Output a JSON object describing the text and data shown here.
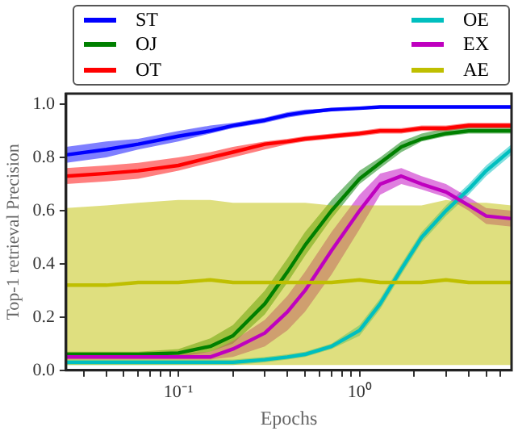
{
  "chart_data": {
    "type": "line",
    "xlabel": "Epochs",
    "ylabel": "Top-1 retrieval Precision",
    "log": "x",
    "legend": "top",
    "marker": "none",
    "line_style": "solid",
    "x": [
      0.024,
      0.04,
      0.06,
      0.1,
      0.15,
      0.2,
      0.3,
      0.4,
      0.5,
      0.7,
      1,
      1.3,
      1.7,
      2.2,
      3,
      4,
      5,
      6.9
    ],
    "xlim": [
      0.024,
      6.9
    ],
    "xticks": [
      {
        "value": 0.03,
        "label": null
      },
      {
        "value": 0.04,
        "label": null
      },
      {
        "value": 0.05,
        "label": null
      },
      {
        "value": 0.06,
        "label": null
      },
      {
        "value": 0.07,
        "label": null
      },
      {
        "value": 0.08,
        "label": null
      },
      {
        "value": 0.09,
        "label": null
      },
      {
        "value": 0.1,
        "label": "10⁻¹"
      },
      {
        "value": 0.2,
        "label": null
      },
      {
        "value": 0.3,
        "label": null
      },
      {
        "value": 0.4,
        "label": null
      },
      {
        "value": 0.5,
        "label": null
      },
      {
        "value": 0.6,
        "label": null
      },
      {
        "value": 0.7,
        "label": null
      },
      {
        "value": 0.8,
        "label": null
      },
      {
        "value": 0.9,
        "label": null
      },
      {
        "value": 1,
        "label": "10⁰"
      },
      {
        "value": 2,
        "label": null
      },
      {
        "value": 3,
        "label": null
      },
      {
        "value": 4,
        "label": null
      },
      {
        "value": 5,
        "label": null
      },
      {
        "value": 6,
        "label": null
      }
    ],
    "ylim": [
      0,
      1.04
    ],
    "yticks": [
      {
        "value": 0,
        "label": "0.0"
      },
      {
        "value": 0.2,
        "label": "0.2"
      },
      {
        "value": 0.4,
        "label": "0.4"
      },
      {
        "value": 0.6,
        "label": "0.6"
      },
      {
        "value": 0.8,
        "label": "0.8"
      },
      {
        "value": 1,
        "label": "1.0"
      }
    ],
    "series": [
      {
        "name": "ST",
        "color": "#0000ff",
        "values": [
          0.81,
          0.83,
          0.85,
          0.88,
          0.9,
          0.92,
          0.94,
          0.96,
          0.97,
          0.98,
          0.985,
          0.99,
          0.99,
          0.99,
          0.99,
          0.99,
          0.99,
          0.99
        ],
        "lower": [
          0.78,
          0.8,
          0.83,
          0.86,
          0.89,
          0.91,
          0.93,
          0.95,
          0.96,
          0.975,
          0.98,
          0.985,
          0.985,
          0.985,
          0.985,
          0.985,
          0.985,
          0.985
        ],
        "upper": [
          0.84,
          0.86,
          0.87,
          0.9,
          0.92,
          0.93,
          0.95,
          0.97,
          0.98,
          0.985,
          0.99,
          0.995,
          0.995,
          0.995,
          0.995,
          0.995,
          0.995,
          0.995
        ]
      },
      {
        "name": "OJ",
        "color": "#008000",
        "values": [
          0.06,
          0.06,
          0.06,
          0.065,
          0.09,
          0.13,
          0.25,
          0.37,
          0.47,
          0.6,
          0.72,
          0.78,
          0.84,
          0.87,
          0.89,
          0.9,
          0.9,
          0.9
        ],
        "lower": [
          0.05,
          0.05,
          0.05,
          0.05,
          0.07,
          0.1,
          0.21,
          0.33,
          0.43,
          0.57,
          0.7,
          0.76,
          0.82,
          0.86,
          0.88,
          0.89,
          0.89,
          0.89
        ],
        "upper": [
          0.07,
          0.07,
          0.07,
          0.08,
          0.12,
          0.17,
          0.3,
          0.42,
          0.52,
          0.64,
          0.75,
          0.8,
          0.86,
          0.89,
          0.91,
          0.92,
          0.92,
          0.92
        ]
      },
      {
        "name": "OT",
        "color": "#ff0000",
        "values": [
          0.73,
          0.74,
          0.75,
          0.77,
          0.8,
          0.82,
          0.85,
          0.86,
          0.87,
          0.88,
          0.89,
          0.9,
          0.9,
          0.91,
          0.91,
          0.92,
          0.92,
          0.92
        ],
        "lower": [
          0.7,
          0.71,
          0.72,
          0.75,
          0.78,
          0.8,
          0.83,
          0.85,
          0.86,
          0.87,
          0.88,
          0.89,
          0.89,
          0.9,
          0.9,
          0.91,
          0.91,
          0.91
        ],
        "upper": [
          0.76,
          0.77,
          0.78,
          0.8,
          0.82,
          0.84,
          0.86,
          0.87,
          0.88,
          0.89,
          0.9,
          0.91,
          0.91,
          0.92,
          0.92,
          0.93,
          0.93,
          0.93
        ]
      },
      {
        "name": "OE",
        "color": "#00bfbf",
        "values": [
          0.03,
          0.03,
          0.03,
          0.03,
          0.03,
          0.03,
          0.04,
          0.05,
          0.06,
          0.09,
          0.15,
          0.25,
          0.38,
          0.5,
          0.6,
          0.68,
          0.75,
          0.83
        ],
        "lower": [
          0.02,
          0.02,
          0.02,
          0.02,
          0.02,
          0.02,
          0.03,
          0.04,
          0.05,
          0.08,
          0.13,
          0.23,
          0.36,
          0.48,
          0.58,
          0.66,
          0.73,
          0.81
        ],
        "upper": [
          0.04,
          0.04,
          0.04,
          0.04,
          0.04,
          0.04,
          0.05,
          0.06,
          0.07,
          0.1,
          0.17,
          0.27,
          0.4,
          0.52,
          0.62,
          0.7,
          0.77,
          0.85
        ]
      },
      {
        "name": "EX",
        "color": "#bf00bf",
        "values": [
          0.05,
          0.05,
          0.05,
          0.05,
          0.05,
          0.08,
          0.14,
          0.22,
          0.3,
          0.45,
          0.6,
          0.7,
          0.73,
          0.7,
          0.67,
          0.62,
          0.58,
          0.57
        ],
        "lower": [
          0.04,
          0.04,
          0.04,
          0.04,
          0.04,
          0.05,
          0.09,
          0.15,
          0.22,
          0.36,
          0.53,
          0.66,
          0.7,
          0.68,
          0.65,
          0.6,
          0.55,
          0.54
        ],
        "upper": [
          0.06,
          0.06,
          0.06,
          0.06,
          0.07,
          0.11,
          0.19,
          0.28,
          0.37,
          0.52,
          0.66,
          0.74,
          0.76,
          0.73,
          0.7,
          0.65,
          0.61,
          0.6
        ]
      },
      {
        "name": "AE",
        "color": "#bfbf00",
        "values": [
          0.32,
          0.32,
          0.33,
          0.33,
          0.34,
          0.33,
          0.33,
          0.33,
          0.33,
          0.33,
          0.34,
          0.33,
          0.33,
          0.33,
          0.34,
          0.33,
          0.33,
          0.33
        ],
        "lower": [
          0.02,
          0.02,
          0.02,
          0.02,
          0.02,
          0.02,
          0.02,
          0.02,
          0.02,
          0.02,
          0.02,
          0.02,
          0.02,
          0.02,
          0.02,
          0.02,
          0.02,
          0.02
        ],
        "upper": [
          0.61,
          0.62,
          0.63,
          0.64,
          0.64,
          0.63,
          0.63,
          0.63,
          0.63,
          0.62,
          0.62,
          0.62,
          0.62,
          0.62,
          0.64,
          0.63,
          0.63,
          0.62
        ]
      }
    ]
  }
}
